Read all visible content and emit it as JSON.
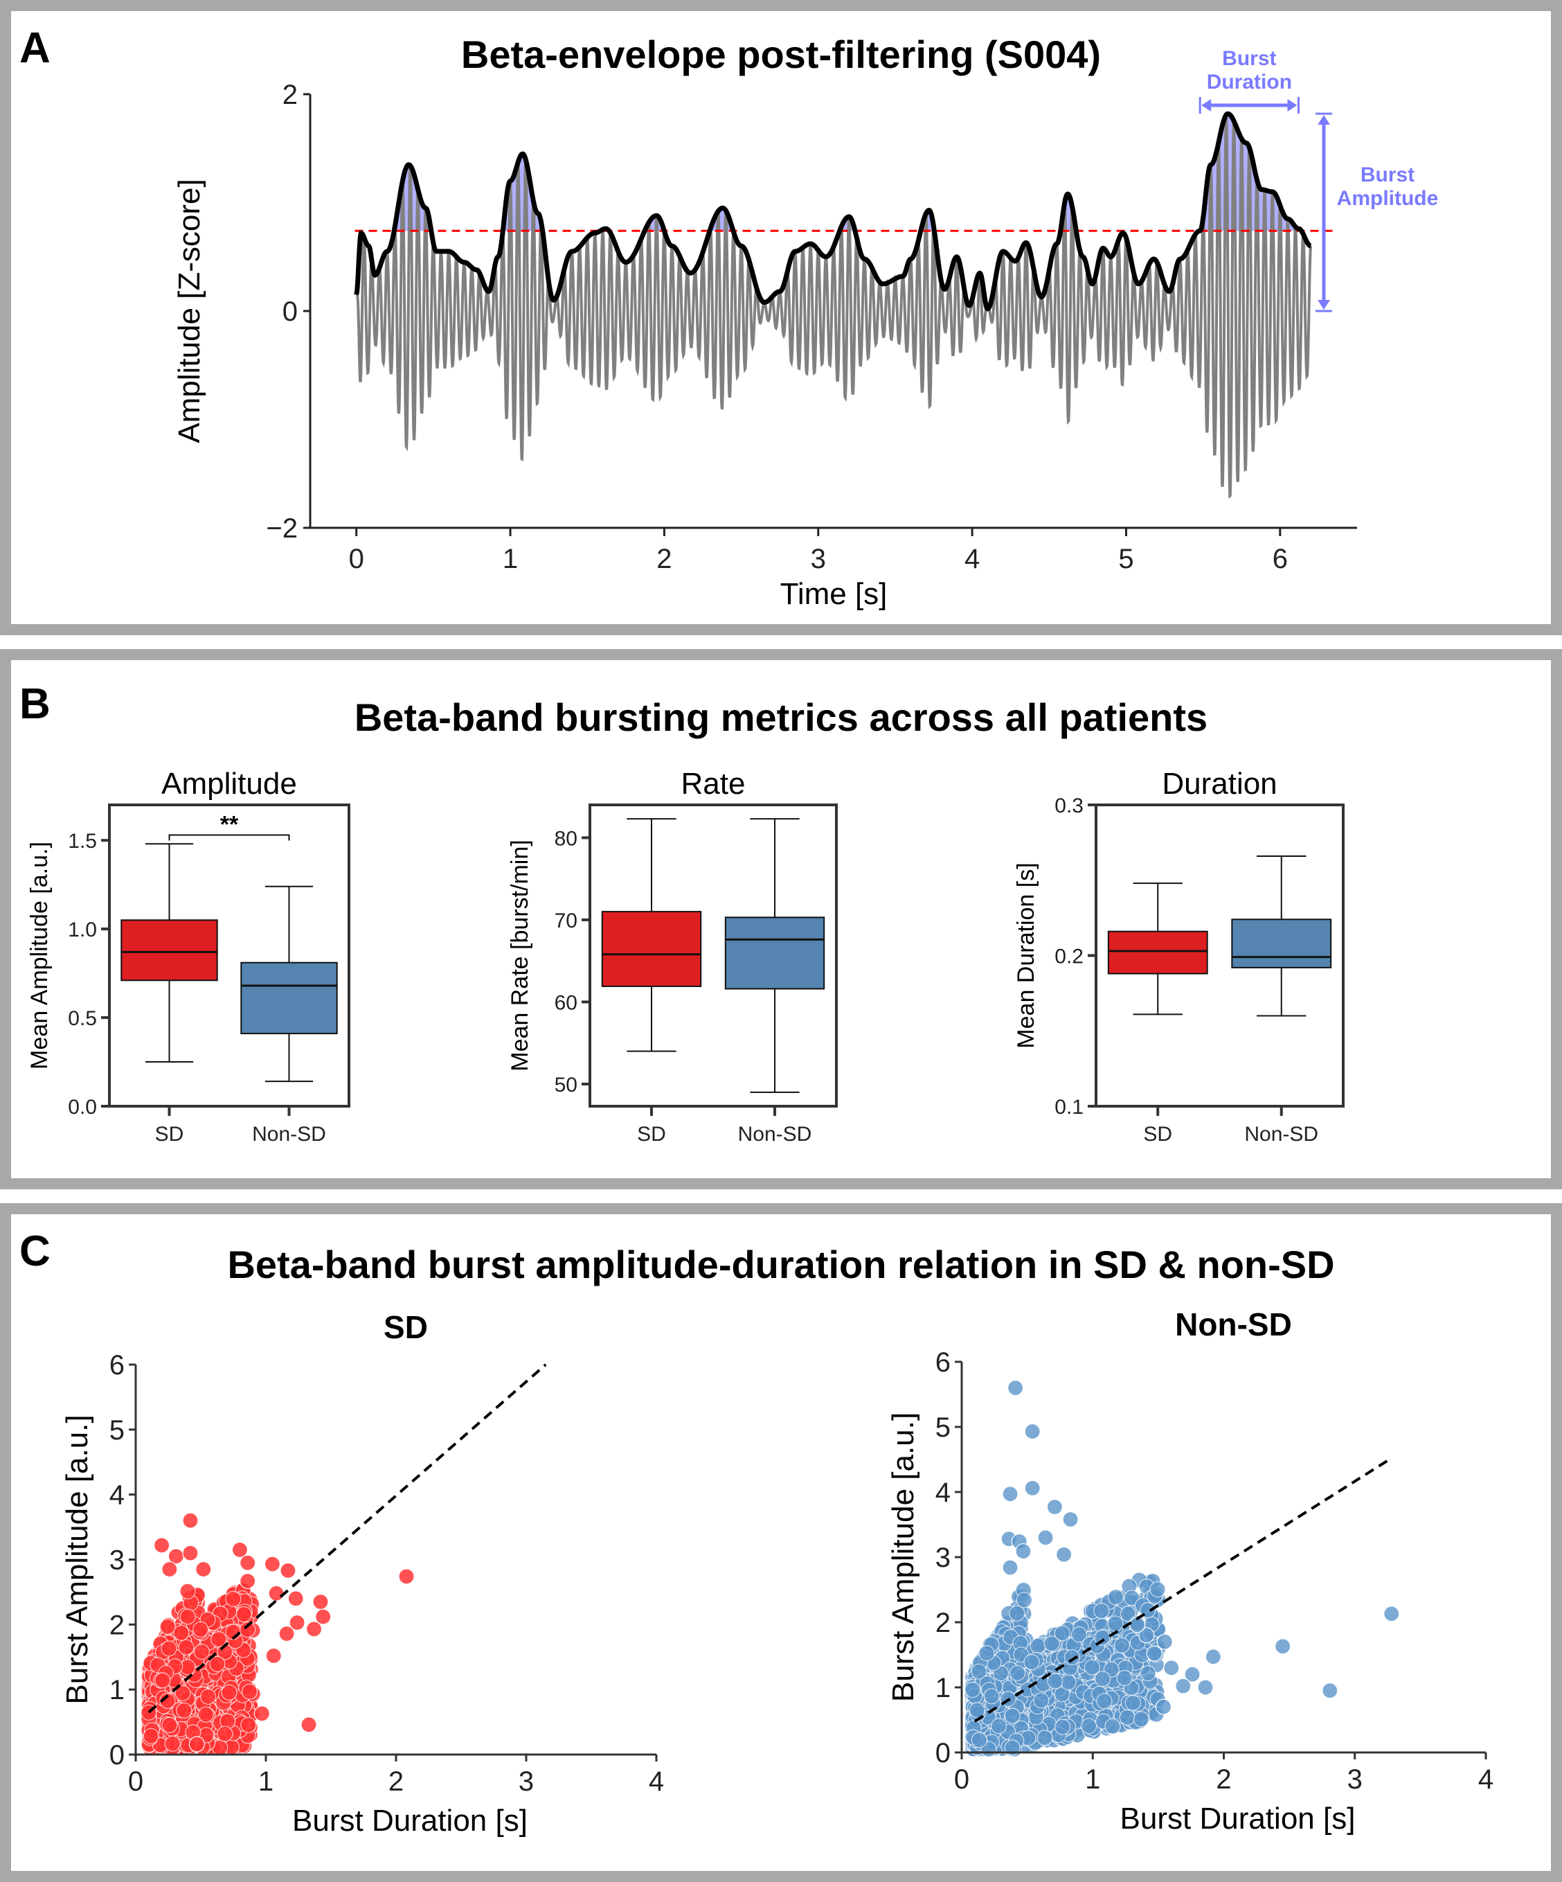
{
  "colors": {
    "sd_red": "#de1f22",
    "nonsd_blue": "#5484af",
    "scatter_red": "#ff3333",
    "scatter_blue": "#5b95c9",
    "burst_annotation": "#7a7aff",
    "burst_fill": "#b0b0ff",
    "threshold": "#ff0000",
    "raw_signal": "#808080",
    "envelope": "#000000",
    "frame": "#a8a8a8"
  },
  "panels": {
    "A": {
      "letter": "A",
      "title": "Beta-envelope post-filtering (S004)"
    },
    "B": {
      "letter": "B",
      "title": "Beta-band bursting metrics across all patients"
    },
    "C": {
      "letter": "C",
      "title": "Beta-band burst amplitude-duration relation in SD & non-SD"
    }
  },
  "chart_data": [
    {
      "id": "A",
      "type": "line",
      "title": "Beta-envelope post-filtering (S004)",
      "xlabel": "Time [s]",
      "ylabel": "Amplitude [Z-score]",
      "xlim": [
        -0.3,
        6.5
      ],
      "ylim": [
        -2,
        2
      ],
      "xticks": [
        "0",
        "1",
        "2",
        "3",
        "4",
        "5",
        "6"
      ],
      "yticks": [
        "−2",
        "0",
        "2"
      ],
      "threshold": 0.74,
      "signal_duration_s": 6.2,
      "oscillation_hz": 20,
      "envelope_points": [
        [
          0.0,
          0.15
        ],
        [
          0.03,
          0.72
        ],
        [
          0.08,
          0.6
        ],
        [
          0.12,
          0.33
        ],
        [
          0.2,
          0.55
        ],
        [
          0.34,
          1.35
        ],
        [
          0.45,
          0.95
        ],
        [
          0.52,
          0.55
        ],
        [
          0.6,
          0.55
        ],
        [
          0.7,
          0.45
        ],
        [
          0.78,
          0.38
        ],
        [
          0.86,
          0.18
        ],
        [
          0.92,
          0.5
        ],
        [
          1.0,
          1.2
        ],
        [
          1.08,
          1.45
        ],
        [
          1.18,
          0.9
        ],
        [
          1.28,
          0.1
        ],
        [
          1.4,
          0.55
        ],
        [
          1.55,
          0.72
        ],
        [
          1.62,
          0.76
        ],
        [
          1.75,
          0.45
        ],
        [
          1.95,
          0.88
        ],
        [
          2.05,
          0.6
        ],
        [
          2.17,
          0.35
        ],
        [
          2.38,
          0.95
        ],
        [
          2.5,
          0.6
        ],
        [
          2.65,
          0.08
        ],
        [
          2.75,
          0.18
        ],
        [
          2.85,
          0.55
        ],
        [
          2.95,
          0.62
        ],
        [
          3.05,
          0.5
        ],
        [
          3.2,
          0.87
        ],
        [
          3.3,
          0.48
        ],
        [
          3.42,
          0.25
        ],
        [
          3.55,
          0.32
        ],
        [
          3.6,
          0.48
        ],
        [
          3.72,
          0.93
        ],
        [
          3.82,
          0.2
        ],
        [
          3.9,
          0.5
        ],
        [
          3.98,
          0.05
        ],
        [
          4.05,
          0.35
        ],
        [
          4.1,
          0.02
        ],
        [
          4.2,
          0.55
        ],
        [
          4.28,
          0.46
        ],
        [
          4.35,
          0.63
        ],
        [
          4.45,
          0.13
        ],
        [
          4.55,
          0.62
        ],
        [
          4.62,
          1.08
        ],
        [
          4.72,
          0.5
        ],
        [
          4.78,
          0.25
        ],
        [
          4.85,
          0.58
        ],
        [
          4.9,
          0.5
        ],
        [
          4.98,
          0.72
        ],
        [
          5.08,
          0.25
        ],
        [
          5.18,
          0.48
        ],
        [
          5.28,
          0.18
        ],
        [
          5.35,
          0.48
        ],
        [
          5.48,
          0.74
        ],
        [
          5.55,
          1.35
        ],
        [
          5.66,
          1.82
        ],
        [
          5.78,
          1.55
        ],
        [
          5.88,
          1.12
        ],
        [
          5.95,
          1.1
        ],
        [
          6.05,
          0.85
        ],
        [
          6.12,
          0.76
        ],
        [
          6.2,
          0.6
        ]
      ],
      "annotations": {
        "burst_duration": {
          "label": "Burst\nDuration",
          "from_s": 5.48,
          "to_s": 6.12
        },
        "burst_amplitude": {
          "label": "Burst\nAmplitude",
          "from": 0,
          "to": 1.82
        }
      }
    },
    {
      "id": "B-amplitude",
      "type": "box",
      "title": "Amplitude",
      "ylabel": "Mean Amplitude [a.u.]",
      "categories": [
        "SD",
        "Non-SD"
      ],
      "ylim": [
        0,
        1.7
      ],
      "yticks": [
        "0.0",
        "0.5",
        "1.0",
        "1.5"
      ],
      "series": [
        {
          "name": "SD",
          "whislo": 0.25,
          "q1": 0.71,
          "median": 0.87,
          "q3": 1.05,
          "whishi": 1.48
        },
        {
          "name": "Non-SD",
          "whislo": 0.14,
          "q1": 0.41,
          "median": 0.68,
          "q3": 0.81,
          "whishi": 1.24
        }
      ],
      "significance": {
        "label": "**",
        "between": [
          "SD",
          "Non-SD"
        ],
        "y": 1.53
      }
    },
    {
      "id": "B-rate",
      "type": "box",
      "title": "Rate",
      "ylabel": "Mean Rate [burst/min]",
      "categories": [
        "SD",
        "Non-SD"
      ],
      "ylim": [
        47.3,
        84
      ],
      "yticks": [
        "50",
        "60",
        "70",
        "80"
      ],
      "series": [
        {
          "name": "SD",
          "whislo": 54.0,
          "q1": 61.9,
          "median": 65.8,
          "q3": 71.0,
          "whishi": 82.3
        },
        {
          "name": "Non-SD",
          "whislo": 49.0,
          "q1": 61.6,
          "median": 67.6,
          "q3": 70.3,
          "whishi": 82.3
        }
      ]
    },
    {
      "id": "B-duration",
      "type": "box",
      "title": "Duration",
      "ylabel": "Mean Duration [s]",
      "categories": [
        "SD",
        "Non-SD"
      ],
      "ylim": [
        0.1,
        0.3
      ],
      "yticks": [
        "0.1",
        "0.2",
        "0.3"
      ],
      "series": [
        {
          "name": "SD",
          "whislo": 0.161,
          "q1": 0.188,
          "median": 0.203,
          "q3": 0.216,
          "whishi": 0.248
        },
        {
          "name": "Non-SD",
          "whislo": 0.16,
          "q1": 0.192,
          "median": 0.199,
          "q3": 0.224,
          "whishi": 0.266
        }
      ]
    },
    {
      "id": "C-SD",
      "type": "scatter",
      "title": "SD",
      "xlabel": "Burst Duration [s]",
      "ylabel": "Burst Amplitude [a.u.]",
      "xlim": [
        0,
        4
      ],
      "ylim": [
        0,
        6
      ],
      "xticks": [
        "0",
        "1",
        "2",
        "3",
        "4"
      ],
      "yticks": [
        "0",
        "1",
        "2",
        "3",
        "4",
        "5",
        "6"
      ],
      "fit_line": {
        "x": [
          0.1,
          3.15
        ],
        "y": [
          0.65,
          6.0
        ]
      },
      "outliers": [
        [
          0.42,
          3.6
        ],
        [
          0.2,
          3.22
        ],
        [
          0.31,
          3.05
        ],
        [
          0.42,
          3.1
        ],
        [
          0.26,
          2.85
        ],
        [
          0.52,
          2.85
        ],
        [
          0.8,
          3.15
        ],
        [
          0.86,
          2.95
        ],
        [
          1.05,
          2.93
        ],
        [
          1.17,
          2.83
        ],
        [
          2.08,
          2.74
        ],
        [
          0.86,
          2.67
        ],
        [
          1.08,
          2.48
        ],
        [
          1.23,
          2.4
        ],
        [
          1.42,
          2.35
        ],
        [
          1.44,
          2.12
        ],
        [
          1.24,
          2.03
        ],
        [
          1.37,
          1.93
        ],
        [
          1.16,
          1.86
        ],
        [
          1.06,
          1.52
        ],
        [
          0.97,
          0.63
        ],
        [
          1.33,
          0.46
        ],
        [
          0.47,
          0.16
        ]
      ],
      "cluster": {
        "x_range": [
          0.1,
          0.9
        ],
        "y_range": [
          0.1,
          2.55
        ],
        "point_count_approx": 2000
      }
    },
    {
      "id": "C-NonSD",
      "type": "scatter",
      "title": "Non-SD",
      "xlabel": "Burst Duration [s]",
      "ylabel": "Burst Amplitude [a.u.]",
      "xlim": [
        0,
        4
      ],
      "ylim": [
        0,
        6
      ],
      "xticks": [
        "0",
        "1",
        "2",
        "3",
        "4"
      ],
      "yticks": [
        "0",
        "1",
        "2",
        "3",
        "4",
        "5",
        "6"
      ],
      "fit_line": {
        "x": [
          0.1,
          3.28
        ],
        "y": [
          0.48,
          4.52
        ]
      },
      "outliers": [
        [
          0.41,
          5.6
        ],
        [
          0.54,
          4.93
        ],
        [
          0.54,
          4.06
        ],
        [
          0.37,
          3.97
        ],
        [
          0.71,
          3.77
        ],
        [
          0.83,
          3.58
        ],
        [
          0.64,
          3.3
        ],
        [
          0.36,
          3.28
        ],
        [
          0.44,
          3.24
        ],
        [
          0.78,
          3.04
        ],
        [
          0.47,
          3.09
        ],
        [
          0.37,
          2.84
        ],
        [
          3.28,
          2.13
        ],
        [
          2.45,
          1.63
        ],
        [
          1.92,
          1.47
        ],
        [
          1.76,
          1.2
        ],
        [
          1.69,
          1.02
        ],
        [
          1.86,
          1.0
        ],
        [
          2.81,
          0.95
        ],
        [
          1.54,
          0.7
        ],
        [
          1.6,
          1.3
        ],
        [
          1.55,
          1.7
        ],
        [
          1.47,
          1.52
        ],
        [
          1.41,
          1.8
        ],
        [
          1.34,
          1.96
        ]
      ],
      "cluster": {
        "x_range": [
          0.08,
          1.5
        ],
        "y_range": [
          0.05,
          2.7
        ],
        "point_count_approx": 4000
      }
    }
  ]
}
